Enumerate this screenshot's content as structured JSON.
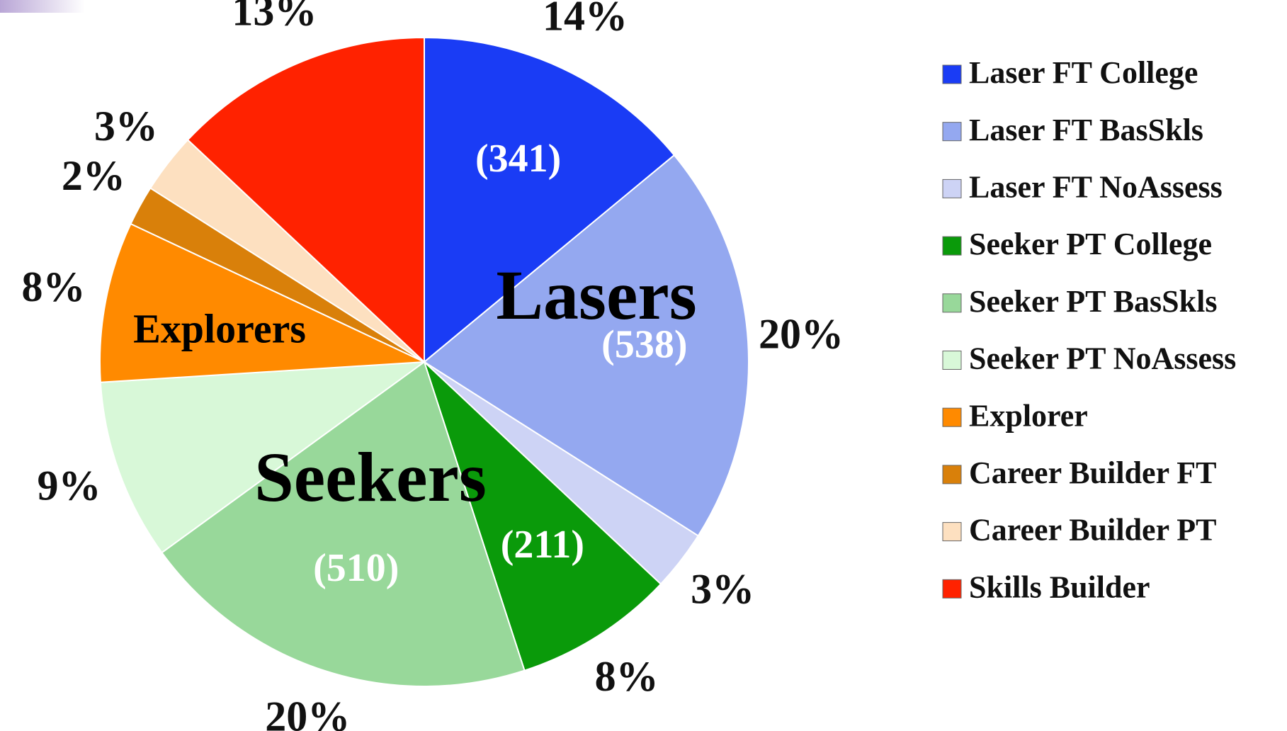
{
  "chart_data": {
    "type": "pie",
    "categories": [
      "Laser FT College",
      "Laser FT BasSkls",
      "Laser FT NoAssess",
      "Seeker PT College",
      "Seeker PT BasSkls",
      "Seeker PT NoAssess",
      "Explorer",
      "Career Builder FT",
      "Career Builder PT",
      "Skills Builder"
    ],
    "values": [
      14,
      20,
      3,
      8,
      20,
      9,
      8,
      2,
      3,
      13
    ],
    "value_labels": [
      "14%",
      "20%",
      "3%",
      "8%",
      "20%",
      "9%",
      "8%",
      "2%",
      "3%",
      "13%"
    ],
    "counts": [
      341,
      538,
      null,
      211,
      510,
      null,
      null,
      null,
      null,
      null
    ],
    "count_labels": [
      "(341)",
      "(538)",
      null,
      "(211)",
      "(510)",
      null,
      null,
      null,
      null,
      null
    ],
    "colors": [
      "#1a3cf5",
      "#94a8f0",
      "#cdd3f5",
      "#0a9a0a",
      "#98d89a",
      "#d8f8d8",
      "#ff8a00",
      "#d9800a",
      "#fde0c0",
      "#ff2200"
    ],
    "annotations": [
      "Lasers",
      "Seekers",
      "Explorers"
    ],
    "legend": "right"
  }
}
